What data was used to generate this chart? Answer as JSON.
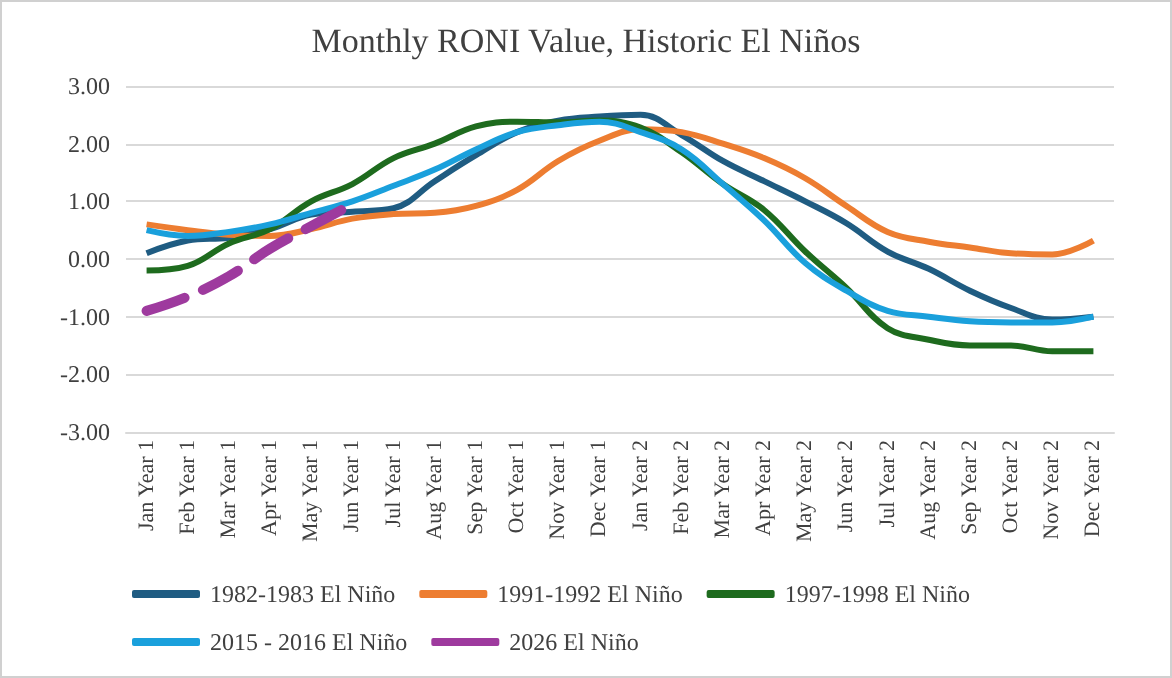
{
  "chart_data": {
    "type": "line",
    "title": "Monthly RONI Value, Historic El Niños",
    "categories": [
      "Jan Year 1",
      "Feb Year 1",
      "Mar Year 1",
      "Apr Year 1",
      "May Year 1",
      "Jun Year 1",
      "Jul Year 1",
      "Aug Year 1",
      "Sep Year 1",
      "Oct Year 1",
      "Nov Year 1",
      "Dec Year 1",
      "Jan Year 2",
      "Feb Year 2",
      "Mar Year 2",
      "Apr Year 2",
      "May Year 2",
      "Jun Year 2",
      "Jul Year 2",
      "Aug Year 2",
      "Sep Year 2",
      "Oct Year 2",
      "Nov Year 2",
      "Dec Year 2"
    ],
    "series": [
      {
        "name": "1982-1983 El Niño",
        "color": "#1f5c82",
        "values": [
          0.1,
          0.32,
          0.37,
          0.52,
          0.77,
          0.82,
          0.88,
          1.35,
          1.8,
          2.2,
          2.4,
          2.47,
          2.5,
          2.15,
          1.7,
          1.35,
          1.0,
          0.62,
          0.13,
          -0.17,
          -0.55,
          -0.85,
          -1.05,
          -1.0
        ]
      },
      {
        "name": "1991-1992 El Niño",
        "color": "#ed7d31",
        "values": [
          0.6,
          0.5,
          0.42,
          0.4,
          0.52,
          0.7,
          0.78,
          0.8,
          0.92,
          1.2,
          1.7,
          2.05,
          2.25,
          2.2,
          2.0,
          1.75,
          1.4,
          0.92,
          0.47,
          0.3,
          0.2,
          0.1,
          0.08,
          0.32
        ]
      },
      {
        "name": "1997-1998 El Niño",
        "color": "#1e6b1e",
        "values": [
          -0.2,
          -0.12,
          0.27,
          0.52,
          1.0,
          1.3,
          1.75,
          2.0,
          2.3,
          2.38,
          2.37,
          2.4,
          2.28,
          1.85,
          1.3,
          0.85,
          0.13,
          -0.5,
          -1.2,
          -1.4,
          -1.5,
          -1.5,
          -1.6,
          -1.6
        ]
      },
      {
        "name": "2015 - 2016 El Niño",
        "color": "#1aa0dc",
        "values": [
          0.5,
          0.4,
          0.47,
          0.6,
          0.8,
          1.0,
          1.27,
          1.55,
          1.9,
          2.2,
          2.32,
          2.38,
          2.2,
          1.9,
          1.3,
          0.67,
          -0.07,
          -0.55,
          -0.9,
          -1.0,
          -1.08,
          -1.1,
          -1.1,
          -1.0
        ]
      },
      {
        "name": "2026 El Niño",
        "color": "#9e3a9e",
        "line_style": "dashed",
        "values": [
          -0.9,
          -0.65,
          -0.3,
          0.18,
          0.57,
          0.95,
          null,
          null,
          null,
          null,
          null,
          null,
          null,
          null,
          null,
          null,
          null,
          null,
          null,
          null,
          null,
          null,
          null,
          null
        ]
      }
    ],
    "ylim": [
      -3,
      3
    ],
    "yticks": [
      {
        "value": -3,
        "label": "-3.00"
      },
      {
        "value": -2,
        "label": "-2.00"
      },
      {
        "value": -1,
        "label": "-1.00"
      },
      {
        "value": 0,
        "label": "0.00"
      },
      {
        "value": 1,
        "label": "1.00"
      },
      {
        "value": 2,
        "label": "2.00"
      },
      {
        "value": 3,
        "label": "3.00"
      }
    ],
    "grid": "y",
    "legend": "bottom",
    "marker": "none",
    "line_style": "solid"
  }
}
